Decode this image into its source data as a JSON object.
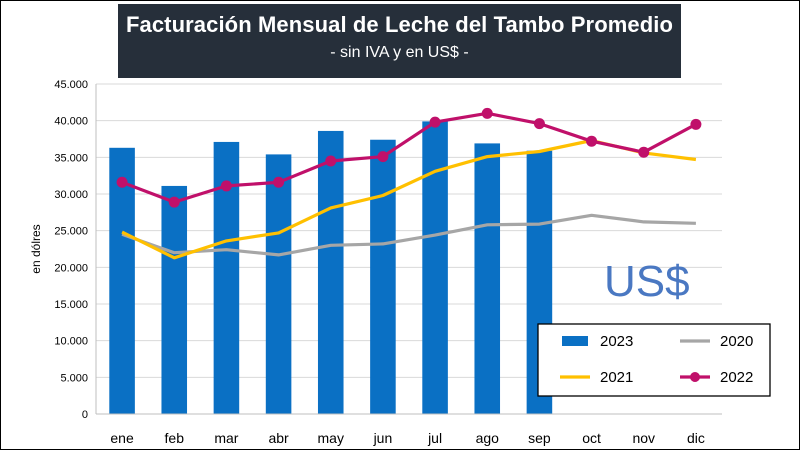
{
  "title": "Facturación Mensual de Leche del Tambo Promedio",
  "subtitle": "- sin IVA y en US$ -",
  "watermark": "US$",
  "colors": {
    "bar": "#0a70c4",
    "s2020": "#a6a6a6",
    "s2021": "#ffc000",
    "s2022": "#c0106a",
    "grid": "#d9d9d9"
  },
  "chart_data": {
    "type": "bar",
    "title": "Facturación Mensual de Leche del Tambo Promedio",
    "subtitle": "- sin IVA y en US$ -",
    "ylabel": "en dólres",
    "xlabel": "",
    "ylim": [
      0,
      45000
    ],
    "yticks": [
      0,
      5000,
      10000,
      15000,
      20000,
      25000,
      30000,
      35000,
      40000,
      45000
    ],
    "ytick_labels": [
      "0",
      "5.000",
      "10.000",
      "15.000",
      "20.000",
      "25.000",
      "30.000",
      "35.000",
      "40.000",
      "45.000"
    ],
    "grid": "horizontal",
    "legend_position": "bottom-right",
    "categories": [
      "ene",
      "feb",
      "mar",
      "abr",
      "may",
      "jun",
      "jul",
      "ago",
      "sep",
      "oct",
      "nov",
      "dic"
    ],
    "series": [
      {
        "name": "2023",
        "type": "bar",
        "values": [
          36300,
          31100,
          37100,
          35400,
          38600,
          37400,
          39900,
          36900,
          35900,
          null,
          null,
          null
        ]
      },
      {
        "name": "2020",
        "type": "line",
        "values": [
          24500,
          22000,
          22400,
          21700,
          23000,
          23200,
          24400,
          25800,
          25900,
          27100,
          26200,
          26000
        ]
      },
      {
        "name": "2021",
        "type": "line",
        "values": [
          24800,
          21300,
          23600,
          24700,
          28100,
          29800,
          33100,
          35100,
          35800,
          37300,
          35600,
          34700
        ]
      },
      {
        "name": "2022",
        "type": "line",
        "markers": true,
        "values": [
          31600,
          28900,
          31100,
          31600,
          34500,
          35100,
          39800,
          41000,
          39600,
          37200,
          35700,
          39500
        ]
      }
    ],
    "legend": [
      "2023",
      "2020",
      "2021",
      "2022"
    ]
  }
}
